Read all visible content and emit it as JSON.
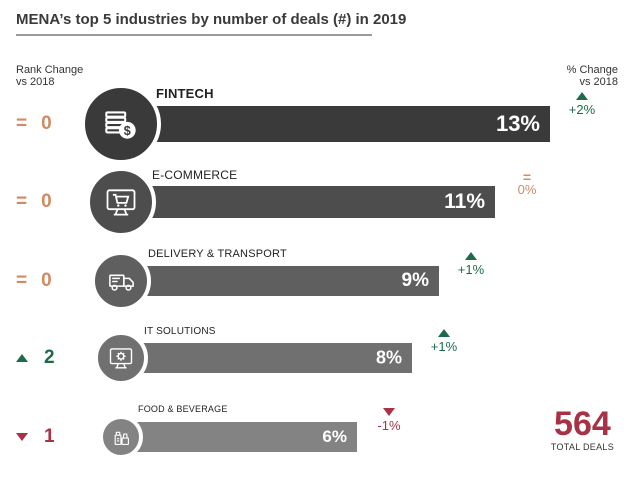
{
  "title": "MENA’s top 5 industries by number of deals (#) in 2019",
  "header": {
    "rank_change_line1": "Rank Change",
    "rank_change_line2": "vs 2018",
    "pct_change_line1": "% Change",
    "pct_change_line2": "vs 2018"
  },
  "colors": {
    "bar_1": "#3a3a3a",
    "bar_2": "#4d4d4d",
    "bar_3": "#5f5f5f",
    "bar_4": "#707070",
    "bar_5": "#838383",
    "up": "#1d6b4b",
    "down": "#a83245",
    "flat": "#d08b63"
  },
  "chart_data": {
    "type": "bar",
    "categories": [
      "FINTECH",
      "E-COMMERCE",
      "DELIVERY & TRANSPORT",
      "IT SOLUTIONS",
      "FOOD & BEVERAGE"
    ],
    "values": [
      13,
      11,
      9,
      8,
      6
    ],
    "value_labels": [
      "13%",
      "11%",
      "9%",
      "8%",
      "6%"
    ],
    "rank_change": [
      {
        "direction": "flat",
        "symbol": "=",
        "value": "0"
      },
      {
        "direction": "flat",
        "symbol": "=",
        "value": "0"
      },
      {
        "direction": "flat",
        "symbol": "=",
        "value": "0"
      },
      {
        "direction": "up",
        "symbol": "",
        "value": "2"
      },
      {
        "direction": "down",
        "symbol": "",
        "value": "1"
      }
    ],
    "pct_change": [
      {
        "direction": "up",
        "label": "+2%"
      },
      {
        "direction": "flat",
        "label": "0%"
      },
      {
        "direction": "up",
        "label": "+1%"
      },
      {
        "direction": "up",
        "label": "+1%"
      },
      {
        "direction": "down",
        "label": "-1%"
      }
    ],
    "icons": [
      "coins-money-icon",
      "shopping-cart-monitor-icon",
      "delivery-truck-icon",
      "gear-monitor-icon",
      "food-beverage-icon"
    ],
    "xlim": [
      0,
      13
    ]
  },
  "total": {
    "value": "564",
    "label": "TOTAL DEALS"
  }
}
